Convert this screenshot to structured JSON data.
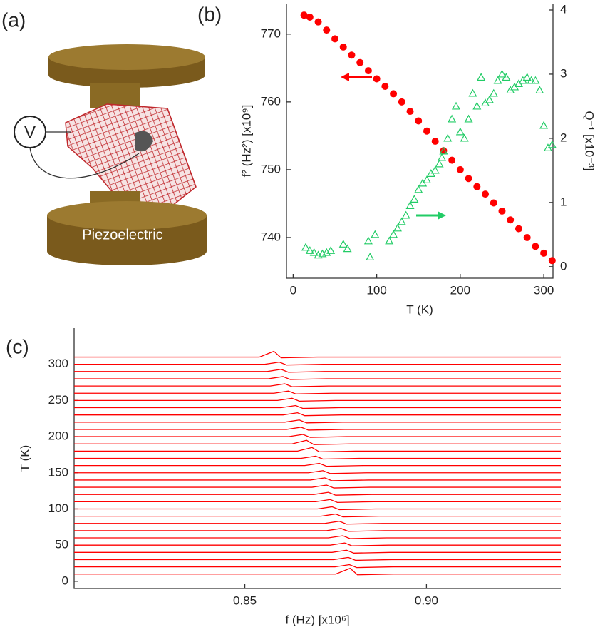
{
  "panel_labels": [
    "(a)",
    "(b)",
    "(c)"
  ],
  "diagram": {
    "voltage_label": "V",
    "base_label": "Piezoelectric"
  },
  "chart_data": [
    {
      "type": "scatter",
      "xlabel": "T (K)",
      "ylabel": "f² (Hz²) [x10⁹]",
      "y2label": "Q⁻¹ [x10⁻³]",
      "xlim": [
        -8,
        311
      ],
      "xticks": [
        0,
        100,
        200,
        300
      ],
      "ylim": [
        734,
        774.5
      ],
      "yticks": [
        740,
        750,
        760,
        770
      ],
      "y2lim": [
        -0.18,
        4.1
      ],
      "y2ticks": [
        0,
        1,
        2,
        3,
        4
      ],
      "series": [
        {
          "color": "#ff0000",
          "marker": "circle",
          "x": [
            13,
            20,
            30,
            40,
            50,
            60,
            70,
            80,
            90,
            100,
            110,
            120,
            130,
            140,
            150,
            160,
            170,
            180,
            190,
            200,
            210,
            220,
            230,
            240,
            250,
            260,
            270,
            280,
            290,
            300,
            310
          ],
          "values": [
            772.8,
            772.5,
            771.8,
            770.6,
            769.3,
            768.1,
            766.9,
            765.8,
            764.6,
            763.4,
            762.3,
            761.2,
            760.0,
            758.6,
            757.2,
            755.7,
            754.2,
            752.8,
            751.4,
            750.0,
            748.7,
            747.5,
            746.4,
            745.1,
            743.9,
            742.6,
            741.3,
            740.0,
            738.7,
            737.7,
            736.6
          ]
        },
        {
          "color": "#22cc66",
          "marker": "triangle",
          "axis": "y2",
          "x": [
            15,
            20,
            25,
            30,
            35,
            40,
            45,
            60,
            65,
            90,
            92,
            98,
            115,
            120,
            125,
            130,
            135,
            140,
            145,
            150,
            155,
            160,
            165,
            170,
            175,
            178,
            180,
            185,
            190,
            195,
            200,
            205,
            210,
            215,
            220,
            225,
            230,
            235,
            240,
            245,
            250,
            255,
            260,
            265,
            270,
            275,
            280,
            285,
            290,
            295,
            300,
            305,
            310
          ],
          "values": [
            0.3,
            0.25,
            0.22,
            0.18,
            0.2,
            0.22,
            0.25,
            0.35,
            0.28,
            0.4,
            0.15,
            0.5,
            0.4,
            0.5,
            0.6,
            0.7,
            0.8,
            0.95,
            1.05,
            1.2,
            1.3,
            1.35,
            1.45,
            1.5,
            1.6,
            1.7,
            1.8,
            2.0,
            2.3,
            2.5,
            2.1,
            2.0,
            2.3,
            2.7,
            2.5,
            2.95,
            2.55,
            2.6,
            2.7,
            2.9,
            3.0,
            2.95,
            2.75,
            2.8,
            2.85,
            2.9,
            2.95,
            2.9,
            2.9,
            2.75,
            2.2,
            1.85,
            1.9
          ]
        }
      ]
    },
    {
      "type": "line",
      "color": "#ff0000",
      "xlabel": "f (Hz) [x10⁶]",
      "ylabel": "T (K)",
      "xlim": [
        0.803,
        0.937
      ],
      "xticks": [
        0.85,
        {
          "value": 0.9,
          "label": "0.90"
        }
      ],
      "ylim": [
        -10,
        350
      ],
      "yticks": [
        0,
        50,
        100,
        150,
        200,
        250,
        300
      ],
      "series": [
        {
          "x": [
            0.803,
            0.875,
            0.879,
            0.881,
            0.891,
            0.937
          ],
          "values": [
            10,
            10,
            18,
            9,
            10,
            10
          ]
        },
        {
          "x": [
            0.803,
            0.8748,
            0.8788,
            0.8808,
            0.8908,
            0.937
          ],
          "values": [
            20,
            20,
            23,
            19,
            20,
            20
          ]
        },
        {
          "x": [
            0.803,
            0.8745,
            0.8785,
            0.8805,
            0.8905,
            0.937
          ],
          "values": [
            30,
            30,
            33,
            29,
            30,
            30
          ]
        },
        {
          "x": [
            0.803,
            0.874,
            0.878,
            0.88,
            0.89,
            0.937
          ],
          "values": [
            40,
            40,
            43,
            39,
            40,
            40
          ]
        },
        {
          "x": [
            0.803,
            0.8735,
            0.8775,
            0.8795,
            0.8895,
            0.937
          ],
          "values": [
            50,
            50,
            53,
            49,
            50,
            50
          ]
        },
        {
          "x": [
            0.803,
            0.873,
            0.877,
            0.879,
            0.889,
            0.937
          ],
          "values": [
            60,
            60,
            63,
            59,
            60,
            60
          ]
        },
        {
          "x": [
            0.803,
            0.8725,
            0.8765,
            0.8785,
            0.8885,
            0.937
          ],
          "values": [
            70,
            70,
            73,
            69,
            70,
            70
          ]
        },
        {
          "x": [
            0.803,
            0.872,
            0.876,
            0.878,
            0.888,
            0.937
          ],
          "values": [
            80,
            80,
            83,
            79,
            80,
            80
          ]
        },
        {
          "x": [
            0.803,
            0.871,
            0.875,
            0.877,
            0.887,
            0.937
          ],
          "values": [
            90,
            90,
            93,
            89,
            90,
            90
          ]
        },
        {
          "x": [
            0.803,
            0.87,
            0.874,
            0.876,
            0.886,
            0.937
          ],
          "values": [
            100,
            100,
            103,
            99,
            100,
            100
          ]
        },
        {
          "x": [
            0.803,
            0.8695,
            0.8735,
            0.8755,
            0.8855,
            0.937
          ],
          "values": [
            110,
            110,
            113,
            109,
            110,
            110
          ]
        },
        {
          "x": [
            0.803,
            0.869,
            0.873,
            0.875,
            0.885,
            0.937
          ],
          "values": [
            120,
            120,
            123,
            119,
            120,
            120
          ]
        },
        {
          "x": [
            0.803,
            0.8685,
            0.8725,
            0.8745,
            0.8845,
            0.937
          ],
          "values": [
            130,
            130,
            133,
            129,
            130,
            130
          ]
        },
        {
          "x": [
            0.803,
            0.868,
            0.872,
            0.874,
            0.884,
            0.937
          ],
          "values": [
            140,
            140,
            143,
            139,
            140,
            140
          ]
        },
        {
          "x": [
            0.803,
            0.8675,
            0.8715,
            0.8735,
            0.8835,
            0.937
          ],
          "values": [
            150,
            150,
            153,
            149,
            150,
            150
          ]
        },
        {
          "x": [
            0.803,
            0.8665,
            0.8705,
            0.8725,
            0.8825,
            0.937
          ],
          "values": [
            160,
            160,
            163,
            159,
            160,
            160
          ]
        },
        {
          "x": [
            0.803,
            0.8655,
            0.8695,
            0.8715,
            0.8815,
            0.937
          ],
          "values": [
            170,
            170,
            173,
            169,
            170,
            170
          ]
        },
        {
          "x": [
            0.803,
            0.8645,
            0.8685,
            0.8705,
            0.8805,
            0.937
          ],
          "values": [
            180,
            180,
            185,
            179,
            180,
            180
          ]
        },
        {
          "x": [
            0.803,
            0.863,
            0.867,
            0.869,
            0.879,
            0.937
          ],
          "values": [
            190,
            190,
            195,
            189,
            190,
            190
          ]
        },
        {
          "x": [
            0.803,
            0.862,
            0.866,
            0.868,
            0.878,
            0.937
          ],
          "values": [
            200,
            200,
            203,
            199,
            200,
            200
          ]
        },
        {
          "x": [
            0.803,
            0.8615,
            0.8655,
            0.8675,
            0.8775,
            0.937
          ],
          "values": [
            210,
            210,
            213,
            209,
            210,
            210
          ]
        },
        {
          "x": [
            0.803,
            0.861,
            0.865,
            0.867,
            0.877,
            0.937
          ],
          "values": [
            220,
            220,
            223,
            219,
            220,
            220
          ]
        },
        {
          "x": [
            0.803,
            0.8605,
            0.8645,
            0.8665,
            0.8765,
            0.937
          ],
          "values": [
            230,
            230,
            233,
            229,
            230,
            230
          ]
        },
        {
          "x": [
            0.803,
            0.86,
            0.864,
            0.866,
            0.876,
            0.937
          ],
          "values": [
            240,
            240,
            243,
            239,
            240,
            240
          ]
        },
        {
          "x": [
            0.803,
            0.859,
            0.863,
            0.865,
            0.875,
            0.937
          ],
          "values": [
            250,
            250,
            253,
            249,
            250,
            250
          ]
        },
        {
          "x": [
            0.803,
            0.858,
            0.862,
            0.864,
            0.874,
            0.937
          ],
          "values": [
            260,
            260,
            263,
            259,
            260,
            260
          ]
        },
        {
          "x": [
            0.803,
            0.857,
            0.861,
            0.863,
            0.873,
            0.937
          ],
          "values": [
            270,
            270,
            273,
            269,
            270,
            270
          ]
        },
        {
          "x": [
            0.803,
            0.8565,
            0.8605,
            0.8625,
            0.8725,
            0.937
          ],
          "values": [
            280,
            280,
            283,
            279,
            280,
            280
          ]
        },
        {
          "x": [
            0.803,
            0.856,
            0.86,
            0.862,
            0.872,
            0.937
          ],
          "values": [
            290,
            290,
            293,
            289,
            290,
            290
          ]
        },
        {
          "x": [
            0.803,
            0.8555,
            0.8595,
            0.8615,
            0.8715,
            0.937
          ],
          "values": [
            300,
            300,
            303,
            299,
            300,
            300
          ]
        },
        {
          "x": [
            0.803,
            0.854,
            0.858,
            0.86,
            0.87,
            0.937
          ],
          "values": [
            310,
            310,
            318,
            309,
            310,
            310
          ]
        }
      ]
    }
  ]
}
